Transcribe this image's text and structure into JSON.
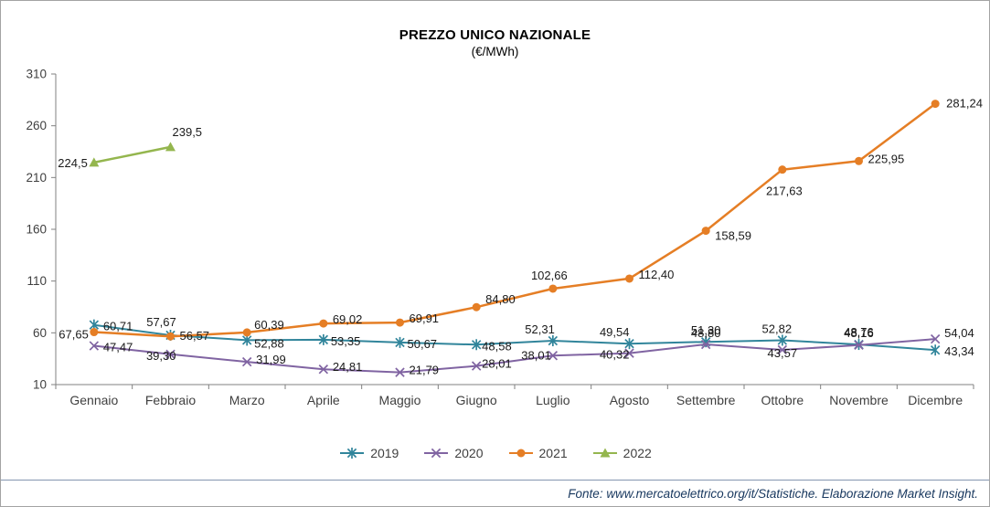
{
  "chart_data": {
    "type": "line",
    "title": "PREZZO UNICO NAZIONALE",
    "subtitle": "(€/MWh)",
    "ylim": [
      10,
      310
    ],
    "yticks": [
      10,
      60,
      110,
      160,
      210,
      260,
      310
    ],
    "grid": false,
    "legend_position": "bottom",
    "categories": [
      "Gennaio",
      "Febbraio",
      "Marzo",
      "Aprile",
      "Maggio",
      "Giugno",
      "Luglio",
      "Agosto",
      "Settembre",
      "Ottobre",
      "Novembre",
      "Dicembre"
    ],
    "series": [
      {
        "name": "2019",
        "color": "#31859B",
        "marker": "asterisk",
        "width": 2,
        "values": [
          67.65,
          57.67,
          52.88,
          53.35,
          50.67,
          48.58,
          52.31,
          49.54,
          51.3,
          52.82,
          48.76,
          43.34
        ],
        "labels": [
          "67,65",
          "57,67",
          "52,88",
          "53,35",
          "50,67",
          "48,58",
          "52,31",
          "49,54",
          "51,30",
          "52,82",
          "48,76",
          "43,34"
        ],
        "label_offsets": [
          [
            "end",
            -6,
            15
          ],
          [
            "middle",
            -10,
            -10
          ],
          [
            "start",
            8,
            8
          ],
          [
            "start",
            8,
            6
          ],
          [
            "start",
            8,
            6
          ],
          [
            "start",
            6,
            6
          ],
          [
            "end",
            2,
            -8
          ],
          [
            "end",
            0,
            -8
          ],
          [
            "middle",
            0,
            -8
          ],
          [
            "middle",
            -6,
            -8
          ],
          [
            "middle",
            0,
            -9
          ],
          [
            "start",
            10,
            6
          ]
        ]
      },
      {
        "name": "2020",
        "color": "#8064A2",
        "marker": "x",
        "width": 2,
        "values": [
          47.47,
          39.3,
          31.99,
          24.81,
          21.79,
          28.01,
          38.01,
          40.32,
          48.8,
          43.57,
          48.16,
          54.04
        ],
        "labels": [
          "47,47",
          "39,30",
          "31,99",
          "24,81",
          "21,79",
          "28,01",
          "38,01",
          "40,32",
          "48,80",
          "43,57",
          "48,16",
          "54,04"
        ],
        "label_offsets": [
          [
            "start",
            10,
            6
          ],
          [
            "end",
            6,
            6
          ],
          [
            "start",
            10,
            2
          ],
          [
            "start",
            10,
            2
          ],
          [
            "start",
            10,
            2
          ],
          [
            "start",
            6,
            2
          ],
          [
            "end",
            -2,
            4
          ],
          [
            "end",
            0,
            6
          ],
          [
            "middle",
            0,
            -8
          ],
          [
            "middle",
            0,
            8
          ],
          [
            "middle",
            0,
            -9
          ],
          [
            "start",
            10,
            -2
          ]
        ]
      },
      {
        "name": "2021",
        "color": "#E57E25",
        "marker": "circle",
        "width": 2.5,
        "values": [
          60.71,
          56.57,
          60.39,
          69.02,
          69.91,
          84.8,
          102.66,
          112.4,
          158.59,
          217.63,
          225.95,
          281.24
        ],
        "labels": [
          "60,71",
          "56,57",
          "60,39",
          "69,02",
          "69,91",
          "84,80",
          "102,66",
          "112,40",
          "158,59",
          "217,63",
          "225,95",
          "281,24"
        ],
        "label_offsets": [
          [
            "start",
            10,
            -2
          ],
          [
            "start",
            10,
            4
          ],
          [
            "start",
            8,
            -4
          ],
          [
            "start",
            10,
            0
          ],
          [
            "start",
            10,
            0
          ],
          [
            "start",
            10,
            -4
          ],
          [
            "middle",
            -4,
            -10
          ],
          [
            "start",
            10,
            0
          ],
          [
            "start",
            10,
            10
          ],
          [
            "middle",
            2,
            28
          ],
          [
            "start",
            10,
            2
          ],
          [
            "start",
            12,
            4
          ]
        ]
      },
      {
        "name": "2022",
        "color": "#94B64E",
        "marker": "triangle",
        "width": 2.5,
        "values": [
          224.5,
          239.5,
          null,
          null,
          null,
          null,
          null,
          null,
          null,
          null,
          null,
          null
        ],
        "labels": [
          "224,5",
          "239,5",
          null,
          null,
          null,
          null,
          null,
          null,
          null,
          null,
          null,
          null
        ],
        "label_offsets": [
          [
            "end",
            -7,
            5
          ],
          [
            "start",
            2,
            -12
          ],
          null,
          null,
          null,
          null,
          null,
          null,
          null,
          null,
          null,
          null
        ]
      }
    ]
  },
  "footer_text": "Fonte: www.mercatoelettrico.org/it/Statistiche. Elaborazione Market Insight."
}
